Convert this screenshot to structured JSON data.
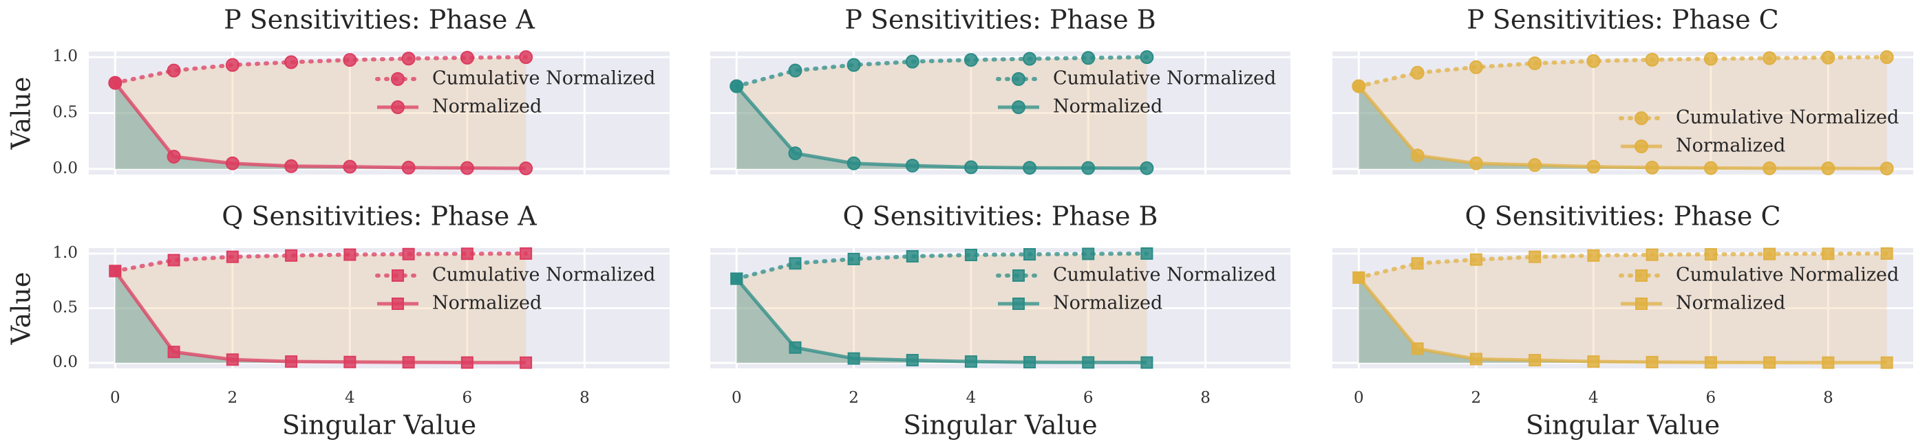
{
  "chart_data": [
    {
      "type": "line",
      "title": "P Sensitivities: Phase A",
      "ylabel": "Value",
      "x": [
        0,
        1,
        2,
        3,
        4,
        5,
        6,
        7
      ],
      "series": [
        {
          "name": "Cumulative Normalized",
          "color": "#dc3c5f",
          "fill": "#f0c48c",
          "marker": "circle",
          "linestyle": "dotted",
          "values": [
            0.77,
            0.88,
            0.93,
            0.955,
            0.975,
            0.987,
            0.995,
            1.0
          ]
        },
        {
          "name": "Normalized",
          "color": "#dc3c5f",
          "fill": "#5a9a92",
          "marker": "circle",
          "linestyle": "solid",
          "values": [
            0.77,
            0.11,
            0.05,
            0.025,
            0.02,
            0.012,
            0.008,
            0.005
          ]
        }
      ],
      "xlim": [
        -0.45,
        9.45
      ],
      "ylim": [
        -0.05,
        1.05
      ],
      "xticks": [
        0,
        2,
        4,
        6,
        8
      ],
      "yticks": [
        {
          "value": 0,
          "label": "0.0"
        },
        {
          "value": 0.5,
          "label": "0.5"
        },
        {
          "value": 1,
          "label": "1.0"
        }
      ],
      "grid": true,
      "legend": "upper right",
      "show_xtick_labels": false,
      "show_ytick_labels": true
    },
    {
      "type": "line",
      "title": "P Sensitivities: Phase B",
      "x": [
        0,
        1,
        2,
        3,
        4,
        5,
        6,
        7
      ],
      "series": [
        {
          "name": "Cumulative Normalized",
          "color": "#2a8c86",
          "fill": "#f0c48c",
          "marker": "circle",
          "linestyle": "dotted",
          "values": [
            0.74,
            0.88,
            0.93,
            0.96,
            0.975,
            0.985,
            0.993,
            1.0
          ]
        },
        {
          "name": "Normalized",
          "color": "#2a8c86",
          "fill": "#5a9a92",
          "marker": "circle",
          "linestyle": "solid",
          "values": [
            0.74,
            0.14,
            0.05,
            0.03,
            0.015,
            0.01,
            0.008,
            0.007
          ]
        }
      ],
      "xlim": [
        -0.45,
        9.45
      ],
      "ylim": [
        -0.05,
        1.05
      ],
      "xticks": [
        0,
        2,
        4,
        6,
        8
      ],
      "yticks": [
        {
          "value": 0,
          "label": "0.0"
        },
        {
          "value": 0.5,
          "label": "0.5"
        },
        {
          "value": 1,
          "label": "1.0"
        }
      ],
      "grid": true,
      "legend": "upper right",
      "show_xtick_labels": false,
      "show_ytick_labels": false
    },
    {
      "type": "line",
      "title": "P Sensitivities: Phase C",
      "x": [
        0,
        1,
        2,
        3,
        4,
        5,
        6,
        7,
        8,
        9
      ],
      "series": [
        {
          "name": "Cumulative Normalized",
          "color": "#e0b040",
          "fill": "#f0c48c",
          "marker": "circle",
          "linestyle": "dotted",
          "values": [
            0.74,
            0.86,
            0.91,
            0.945,
            0.965,
            0.977,
            0.985,
            0.991,
            0.996,
            1.0
          ]
        },
        {
          "name": "Normalized",
          "color": "#e0b040",
          "fill": "#5a9a92",
          "marker": "circle",
          "linestyle": "solid",
          "values": [
            0.74,
            0.12,
            0.05,
            0.035,
            0.02,
            0.012,
            0.008,
            0.006,
            0.005,
            0.004
          ]
        }
      ],
      "xlim": [
        -0.45,
        9.45
      ],
      "ylim": [
        -0.05,
        1.05
      ],
      "xticks": [
        0,
        2,
        4,
        6,
        8
      ],
      "yticks": [
        {
          "value": 0,
          "label": "0.0"
        },
        {
          "value": 0.5,
          "label": "0.5"
        },
        {
          "value": 1,
          "label": "1.0"
        }
      ],
      "grid": true,
      "legend": "lower right",
      "show_xtick_labels": false,
      "show_ytick_labels": false
    },
    {
      "type": "line",
      "title": "Q Sensitivities: Phase A",
      "ylabel": "Value",
      "xlabel": "Singular Value",
      "x": [
        0,
        1,
        2,
        3,
        4,
        5,
        6,
        7
      ],
      "series": [
        {
          "name": "Cumulative Normalized",
          "color": "#dc3c5f",
          "fill": "#f0c48c",
          "marker": "square",
          "linestyle": "dotted",
          "values": [
            0.84,
            0.94,
            0.97,
            0.982,
            0.99,
            0.995,
            0.998,
            1.0
          ]
        },
        {
          "name": "Normalized",
          "color": "#dc3c5f",
          "fill": "#5a9a92",
          "marker": "square",
          "linestyle": "solid",
          "values": [
            0.84,
            0.1,
            0.03,
            0.012,
            0.008,
            0.005,
            0.003,
            0.002
          ]
        }
      ],
      "xlim": [
        -0.45,
        9.45
      ],
      "ylim": [
        -0.05,
        1.05
      ],
      "xticks": [
        0,
        2,
        4,
        6,
        8
      ],
      "yticks": [
        {
          "value": 0,
          "label": "0.0"
        },
        {
          "value": 0.5,
          "label": "0.5"
        },
        {
          "value": 1,
          "label": "1.0"
        }
      ],
      "grid": true,
      "legend": "upper right",
      "show_xtick_labels": true,
      "show_ytick_labels": true
    },
    {
      "type": "line",
      "title": "Q Sensitivities: Phase B",
      "xlabel": "Singular Value",
      "x": [
        0,
        1,
        2,
        3,
        4,
        5,
        6,
        7
      ],
      "series": [
        {
          "name": "Cumulative Normalized",
          "color": "#2a8c86",
          "fill": "#f0c48c",
          "marker": "square",
          "linestyle": "dotted",
          "values": [
            0.77,
            0.91,
            0.95,
            0.975,
            0.987,
            0.993,
            0.997,
            1.0
          ]
        },
        {
          "name": "Normalized",
          "color": "#2a8c86",
          "fill": "#5a9a92",
          "marker": "square",
          "linestyle": "solid",
          "values": [
            0.77,
            0.14,
            0.04,
            0.025,
            0.012,
            0.006,
            0.004,
            0.003
          ]
        }
      ],
      "xlim": [
        -0.45,
        9.45
      ],
      "ylim": [
        -0.05,
        1.05
      ],
      "xticks": [
        0,
        2,
        4,
        6,
        8
      ],
      "yticks": [
        {
          "value": 0,
          "label": "0.0"
        },
        {
          "value": 0.5,
          "label": "0.5"
        },
        {
          "value": 1,
          "label": "1.0"
        }
      ],
      "grid": true,
      "legend": "upper right",
      "show_xtick_labels": true,
      "show_ytick_labels": false
    },
    {
      "type": "line",
      "title": "Q Sensitivities: Phase C",
      "xlabel": "Singular Value",
      "x": [
        0,
        1,
        2,
        3,
        4,
        5,
        6,
        7,
        8,
        9
      ],
      "series": [
        {
          "name": "Cumulative Normalized",
          "color": "#e0b040",
          "fill": "#f0c48c",
          "marker": "square",
          "linestyle": "dotted",
          "values": [
            0.78,
            0.91,
            0.945,
            0.97,
            0.982,
            0.989,
            0.993,
            0.996,
            0.998,
            1.0
          ]
        },
        {
          "name": "Normalized",
          "color": "#e0b040",
          "fill": "#5a9a92",
          "marker": "square",
          "linestyle": "solid",
          "values": [
            0.78,
            0.13,
            0.035,
            0.025,
            0.012,
            0.007,
            0.004,
            0.003,
            0.002,
            0.002
          ]
        }
      ],
      "xlim": [
        -0.45,
        9.45
      ],
      "ylim": [
        -0.05,
        1.05
      ],
      "xticks": [
        0,
        2,
        4,
        6,
        8
      ],
      "yticks": [
        {
          "value": 0,
          "label": "0.0"
        },
        {
          "value": 0.5,
          "label": "0.5"
        },
        {
          "value": 1,
          "label": "1.0"
        }
      ],
      "grid": true,
      "legend": "upper right",
      "show_xtick_labels": true,
      "show_ytick_labels": false
    }
  ]
}
